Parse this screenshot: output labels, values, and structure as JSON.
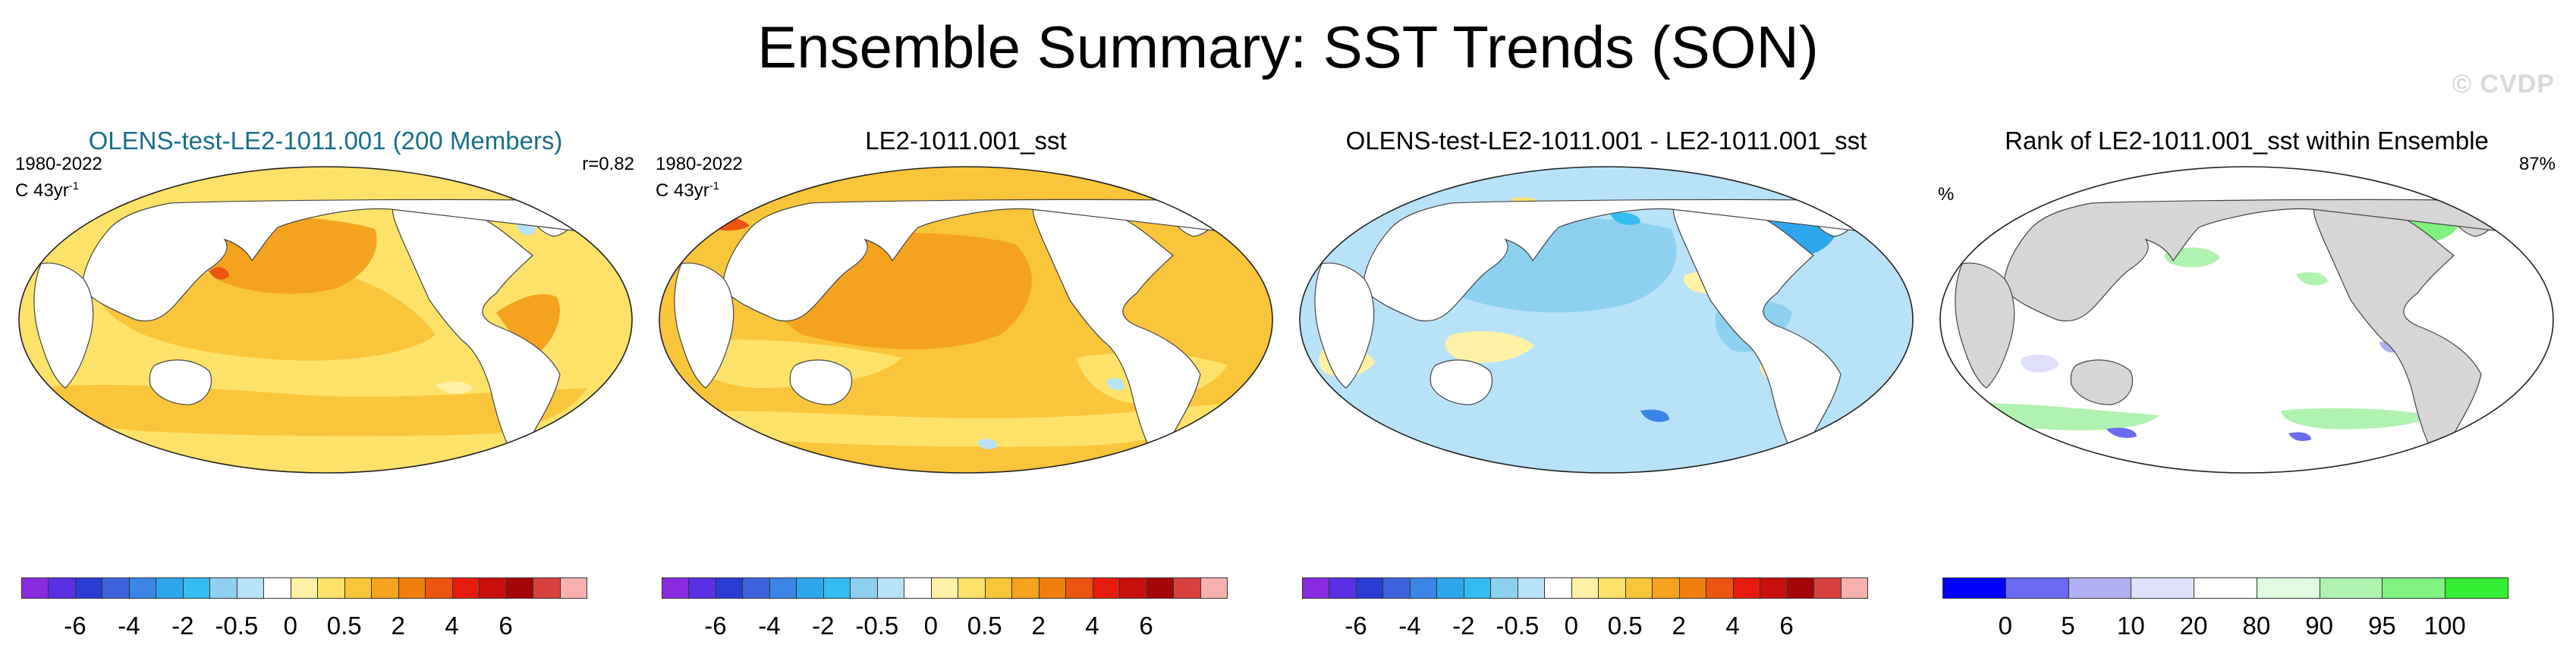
{
  "title": "Ensemble Summary: SST Trends (SON)",
  "watermark": "© CVDP",
  "colors": {
    "title_blue": "#1a6e8c",
    "land": "#ffffff",
    "land_gray": "#d6d6d6",
    "coast": "#444444"
  },
  "panels": [
    {
      "title": "OLENS-test-LE2-1011.001 (200 Members)",
      "period": "1980-2022",
      "units_prefix": "C 43yr",
      "units_exp": "-1",
      "corr": "r=0.82"
    },
    {
      "title": "LE2-1011.001_sst",
      "period": "1980-2022",
      "units_prefix": "C 43yr",
      "units_exp": "-1"
    },
    {
      "title": "OLENS-test-LE2-1011.001 - LE2-1011.001_sst"
    },
    {
      "title": "Rank of LE2-1011.001_sst within Ensemble",
      "units": "%",
      "pct": "87%"
    }
  ],
  "chart_data": [
    {
      "type": "heatmap",
      "title": "OLENS-test-LE2-1011.001 (200 Members)",
      "variable": "SST trend (SON), C 43yr-1",
      "projection": "global, Pacific-centered",
      "colorbar": {
        "levels": [
          -8,
          -7,
          -6,
          -5,
          -4,
          -3,
          -2,
          -1,
          -0.5,
          -0.2,
          0,
          0.2,
          0.5,
          1,
          2,
          3,
          4,
          5,
          6,
          7,
          8
        ],
        "tick_labels": [
          "-6",
          "-4",
          "-2",
          "-0.5",
          "0",
          "0.5",
          "2",
          "4",
          "6"
        ],
        "colors": [
          "#8a2be2",
          "#5a30e6",
          "#2a3bd6",
          "#3b62dc",
          "#3a85e6",
          "#2ea6ee",
          "#34bdf2",
          "#8ed0f0",
          "#b8e2f8",
          "#ffffff",
          "#fff2a6",
          "#fde26a",
          "#f9c53a",
          "#f5a31f",
          "#f07f0e",
          "#ec5410",
          "#e81b0e",
          "#c9100c",
          "#a6060a",
          "#d8403e",
          "#f7b0ae"
        ]
      },
      "pattern": "warming (0.5 to 2) over most oceans; 2 to 4 in North Pacific and North Atlantic; locally >4 near Arctic and Gulf Stream"
    },
    {
      "type": "heatmap",
      "title": "LE2-1011.001_sst",
      "variable": "SST trend (SON), C 43yr-1",
      "pattern": "warming (0.5 to 2) over most oceans; 2 to 4 in North Pacific and North Atlantic; small cooling patches in Southern Ocean"
    },
    {
      "type": "heatmap",
      "title": "OLENS-test-LE2-1011.001 - LE2-1011.001_sst",
      "variable": "difference, C 43yr-1",
      "pattern": "mostly -0.5 to 0 (light blue) with -2 to -0.5 in North Pacific, Arctic and North Atlantic; positive 0 to 0.5 patches in tropics and Southern Ocean"
    },
    {
      "type": "heatmap",
      "title": "Rank of LE2-1011.001_sst within Ensemble",
      "variable": "rank, %",
      "colorbar": {
        "levels": [
          0,
          5,
          10,
          20,
          80,
          90,
          95,
          100
        ],
        "tick_labels": [
          "0",
          "5",
          "10",
          "20",
          "80",
          "90",
          "95",
          "100"
        ],
        "colors": [
          "#0000ff",
          "#6a6af2",
          "#b0b0f2",
          "#e0e0fb",
          "#ffffff",
          "#e0fbe0",
          "#b0f2b0",
          "#80f280",
          "#33ee33"
        ]
      },
      "summary": "87%",
      "pattern": "mostly 20-80 (white); green (high rank) in North Atlantic, Arctic and parts of the Southern Ocean; blue (low rank) patches in south Indian Ocean and Southern Ocean"
    }
  ]
}
